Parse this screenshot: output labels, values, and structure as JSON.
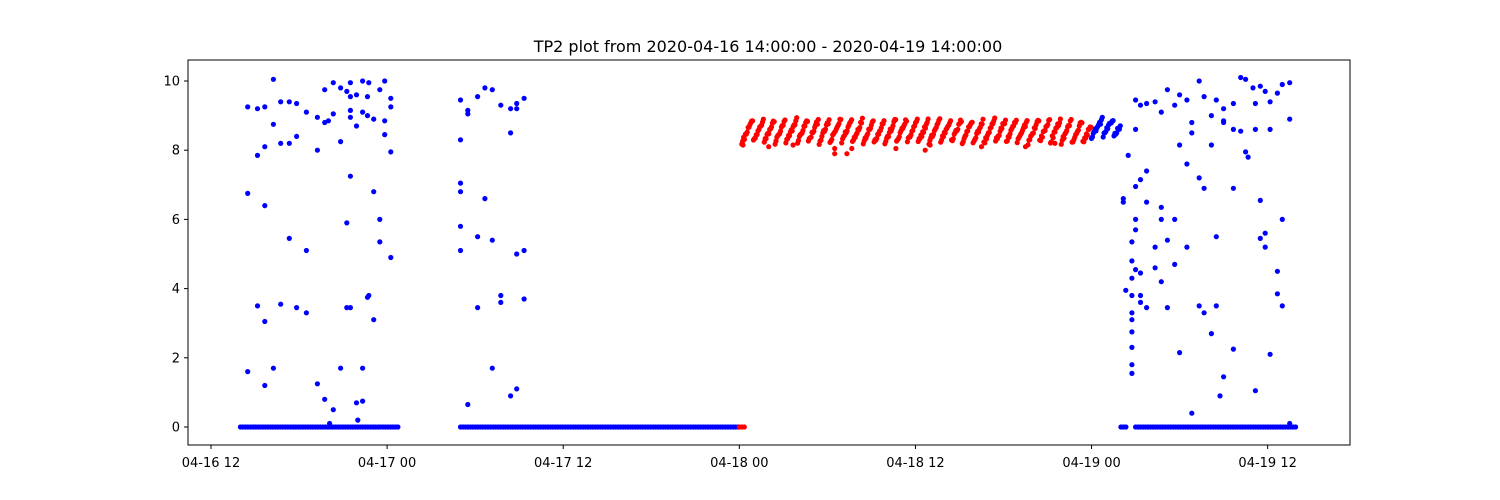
{
  "chart_data": {
    "type": "scatter",
    "title": "TP2 plot from 2020-04-16 14:00:00 - 2020-04-19 14:00:00",
    "xlabel": "",
    "ylabel": "",
    "xlim": [
      "2020-04-16 12:00",
      "2020-04-19 14:00"
    ],
    "ylim": [
      0,
      10
    ],
    "x_ticks": [
      "04-16 12",
      "04-17 00",
      "04-17 12",
      "04-18 00",
      "04-18 12",
      "04-19 00",
      "04-19 12"
    ],
    "y_ticks": [
      "0",
      "2",
      "4",
      "6",
      "8",
      "10"
    ],
    "grid": false,
    "legend": "none",
    "colors": {
      "series_a": "#0000ff",
      "series_b": "#ff0000"
    },
    "series": [
      {
        "color": "#0000ff",
        "segments": [
          {
            "x_start": "2020-04-16 14:00",
            "x_end": "2020-04-17 00:45",
            "y": 0
          },
          {
            "x_start": "2020-04-17 05:00",
            "x_end": "2020-04-17 23:55",
            "y": 0
          },
          {
            "x_start": "2020-04-19 02:00",
            "x_end": "2020-04-19 02:30",
            "y": 0
          },
          {
            "x_start": "2020-04-19 03:00",
            "x_end": "2020-04-19 14:00",
            "y": 0
          }
        ],
        "band": {
          "x_start": "2020-04-19 00:00",
          "x_end": "2020-04-19 02:00",
          "y_min": 8.4,
          "y_max": 8.9
        },
        "points": [
          [
            "2020-04-16 14:30",
            9.25
          ],
          [
            "2020-04-16 14:30",
            6.75
          ],
          [
            "2020-04-16 14:30",
            1.6
          ],
          [
            "2020-04-16 15:10",
            9.2
          ],
          [
            "2020-04-16 15:10",
            7.85
          ],
          [
            "2020-04-16 15:10",
            3.5
          ],
          [
            "2020-04-16 15:40",
            9.25
          ],
          [
            "2020-04-16 15:40",
            8.1
          ],
          [
            "2020-04-16 15:40",
            6.4
          ],
          [
            "2020-04-16 15:40",
            3.05
          ],
          [
            "2020-04-16 15:40",
            1.2
          ],
          [
            "2020-04-16 16:15",
            10.05
          ],
          [
            "2020-04-16 16:15",
            8.75
          ],
          [
            "2020-04-16 16:15",
            1.7
          ],
          [
            "2020-04-16 16:45",
            9.4
          ],
          [
            "2020-04-16 16:45",
            8.2
          ],
          [
            "2020-04-16 16:45",
            3.55
          ],
          [
            "2020-04-16 17:20",
            9.4
          ],
          [
            "2020-04-16 17:20",
            8.2
          ],
          [
            "2020-04-16 17:20",
            5.45
          ],
          [
            "2020-04-16 17:50",
            9.35
          ],
          [
            "2020-04-16 17:50",
            8.4
          ],
          [
            "2020-04-16 17:50",
            3.45
          ],
          [
            "2020-04-16 18:30",
            9.1
          ],
          [
            "2020-04-16 18:30",
            5.1
          ],
          [
            "2020-04-16 18:30",
            3.3
          ],
          [
            "2020-04-16 19:15",
            8.95
          ],
          [
            "2020-04-16 19:15",
            8.0
          ],
          [
            "2020-04-16 19:15",
            1.25
          ],
          [
            "2020-04-16 19:45",
            9.75
          ],
          [
            "2020-04-16 19:45",
            8.8
          ],
          [
            "2020-04-16 19:45",
            0.8
          ],
          [
            "2020-04-16 20:00",
            8.85
          ],
          [
            "2020-04-16 20:05",
            0.1
          ],
          [
            "2020-04-16 20:20",
            0.5
          ],
          [
            "2020-04-16 20:20",
            9.95
          ],
          [
            "2020-04-16 20:20",
            9.05
          ],
          [
            "2020-04-16 20:50",
            9.8
          ],
          [
            "2020-04-16 20:50",
            8.25
          ],
          [
            "2020-04-16 20:50",
            1.7
          ],
          [
            "2020-04-16 21:15",
            9.7
          ],
          [
            "2020-04-16 21:15",
            5.9
          ],
          [
            "2020-04-16 21:15",
            3.45
          ],
          [
            "2020-04-16 21:30",
            9.95
          ],
          [
            "2020-04-16 21:30",
            9.55
          ],
          [
            "2020-04-16 21:30",
            9.15
          ],
          [
            "2020-04-16 21:30",
            8.95
          ],
          [
            "2020-04-16 21:30",
            7.25
          ],
          [
            "2020-04-16 21:30",
            3.45
          ],
          [
            "2020-04-16 21:55",
            9.6
          ],
          [
            "2020-04-16 21:55",
            8.7
          ],
          [
            "2020-04-16 21:55",
            0.7
          ],
          [
            "2020-04-16 22:00",
            0.2
          ],
          [
            "2020-04-16 22:20",
            10.0
          ],
          [
            "2020-04-16 22:20",
            9.1
          ],
          [
            "2020-04-16 22:20",
            1.7
          ],
          [
            "2020-04-16 22:20",
            0.75
          ],
          [
            "2020-04-16 22:40",
            9.55
          ],
          [
            "2020-04-16 22:40",
            9.0
          ],
          [
            "2020-04-16 22:40",
            3.75
          ],
          [
            "2020-04-16 22:45",
            9.95
          ],
          [
            "2020-04-16 22:45",
            3.8
          ],
          [
            "2020-04-16 23:05",
            8.9
          ],
          [
            "2020-04-16 23:05",
            6.8
          ],
          [
            "2020-04-16 23:05",
            3.1
          ],
          [
            "2020-04-16 23:30",
            9.75
          ],
          [
            "2020-04-16 23:30",
            6.0
          ],
          [
            "2020-04-16 23:30",
            5.35
          ],
          [
            "2020-04-16 23:50",
            10.0
          ],
          [
            "2020-04-16 23:50",
            8.85
          ],
          [
            "2020-04-16 23:50",
            8.45
          ],
          [
            "2020-04-17 00:15",
            9.5
          ],
          [
            "2020-04-17 00:15",
            9.25
          ],
          [
            "2020-04-17 00:15",
            7.95
          ],
          [
            "2020-04-17 00:15",
            4.9
          ],
          [
            "2020-04-17 05:00",
            9.45
          ],
          [
            "2020-04-17 05:00",
            8.3
          ],
          [
            "2020-04-17 05:00",
            7.05
          ],
          [
            "2020-04-17 05:00",
            6.8
          ],
          [
            "2020-04-17 05:00",
            5.8
          ],
          [
            "2020-04-17 05:00",
            5.1
          ],
          [
            "2020-04-17 05:30",
            9.15
          ],
          [
            "2020-04-17 05:30",
            9.05
          ],
          [
            "2020-04-17 05:30",
            0.65
          ],
          [
            "2020-04-17 06:10",
            9.55
          ],
          [
            "2020-04-17 06:10",
            5.5
          ],
          [
            "2020-04-17 06:10",
            3.45
          ],
          [
            "2020-04-17 06:40",
            9.8
          ],
          [
            "2020-04-17 06:40",
            6.6
          ],
          [
            "2020-04-17 07:10",
            9.75
          ],
          [
            "2020-04-17 07:10",
            5.4
          ],
          [
            "2020-04-17 07:10",
            1.7
          ],
          [
            "2020-04-17 07:45",
            9.3
          ],
          [
            "2020-04-17 07:45",
            3.8
          ],
          [
            "2020-04-17 07:45",
            3.6
          ],
          [
            "2020-04-17 08:25",
            9.2
          ],
          [
            "2020-04-17 08:25",
            8.5
          ],
          [
            "2020-04-17 08:25",
            0.9
          ],
          [
            "2020-04-17 08:50",
            9.35
          ],
          [
            "2020-04-17 08:50",
            9.2
          ],
          [
            "2020-04-17 08:50",
            5.0
          ],
          [
            "2020-04-17 08:50",
            1.1
          ],
          [
            "2020-04-17 09:20",
            9.5
          ],
          [
            "2020-04-17 09:20",
            5.1
          ],
          [
            "2020-04-17 09:20",
            3.7
          ],
          [
            "2020-04-19 02:10",
            6.6
          ],
          [
            "2020-04-19 02:10",
            6.5
          ],
          [
            "2020-04-19 02:20",
            3.95
          ],
          [
            "2020-04-19 02:30",
            7.85
          ],
          [
            "2020-04-19 02:45",
            5.35
          ],
          [
            "2020-04-19 02:45",
            4.8
          ],
          [
            "2020-04-19 02:45",
            4.3
          ],
          [
            "2020-04-19 02:45",
            3.8
          ],
          [
            "2020-04-19 02:45",
            3.3
          ],
          [
            "2020-04-19 02:45",
            3.1
          ],
          [
            "2020-04-19 02:45",
            2.75
          ],
          [
            "2020-04-19 02:45",
            2.3
          ],
          [
            "2020-04-19 02:45",
            1.8
          ],
          [
            "2020-04-19 02:45",
            1.55
          ],
          [
            "2020-04-19 03:00",
            9.45
          ],
          [
            "2020-04-19 03:00",
            8.6
          ],
          [
            "2020-04-19 03:00",
            6.95
          ],
          [
            "2020-04-19 03:00",
            6.0
          ],
          [
            "2020-04-19 03:00",
            5.7
          ],
          [
            "2020-04-19 03:00",
            4.55
          ],
          [
            "2020-04-19 03:20",
            9.3
          ],
          [
            "2020-04-19 03:20",
            7.15
          ],
          [
            "2020-04-19 03:20",
            4.45
          ],
          [
            "2020-04-19 03:20",
            3.8
          ],
          [
            "2020-04-19 03:20",
            3.6
          ],
          [
            "2020-04-19 03:45",
            9.35
          ],
          [
            "2020-04-19 03:45",
            7.4
          ],
          [
            "2020-04-19 03:45",
            6.5
          ],
          [
            "2020-04-19 03:45",
            3.45
          ],
          [
            "2020-04-19 04:20",
            9.4
          ],
          [
            "2020-04-19 04:20",
            5.2
          ],
          [
            "2020-04-19 04:20",
            4.6
          ],
          [
            "2020-04-19 04:45",
            9.1
          ],
          [
            "2020-04-19 04:45",
            6.0
          ],
          [
            "2020-04-19 04:45",
            6.35
          ],
          [
            "2020-04-19 04:45",
            4.2
          ],
          [
            "2020-04-19 05:10",
            9.75
          ],
          [
            "2020-04-19 05:10",
            5.4
          ],
          [
            "2020-04-19 05:10",
            3.45
          ],
          [
            "2020-04-19 05:40",
            9.3
          ],
          [
            "2020-04-19 05:40",
            6.0
          ],
          [
            "2020-04-19 05:40",
            4.7
          ],
          [
            "2020-04-19 06:00",
            9.6
          ],
          [
            "2020-04-19 06:00",
            8.15
          ],
          [
            "2020-04-19 06:00",
            2.15
          ],
          [
            "2020-04-19 06:30",
            9.45
          ],
          [
            "2020-04-19 06:30",
            7.6
          ],
          [
            "2020-04-19 06:30",
            5.2
          ],
          [
            "2020-04-19 06:50",
            8.8
          ],
          [
            "2020-04-19 06:50",
            8.5
          ],
          [
            "2020-04-19 06:50",
            0.4
          ],
          [
            "2020-04-19 07:20",
            10.0
          ],
          [
            "2020-04-19 07:20",
            7.2
          ],
          [
            "2020-04-19 07:20",
            3.5
          ],
          [
            "2020-04-19 07:40",
            9.55
          ],
          [
            "2020-04-19 07:40",
            6.9
          ],
          [
            "2020-04-19 07:40",
            3.3
          ],
          [
            "2020-04-19 08:10",
            9.0
          ],
          [
            "2020-04-19 08:10",
            8.15
          ],
          [
            "2020-04-19 08:10",
            2.7
          ],
          [
            "2020-04-19 08:30",
            9.45
          ],
          [
            "2020-04-19 08:30",
            5.5
          ],
          [
            "2020-04-19 08:30",
            3.5
          ],
          [
            "2020-04-19 08:45",
            0.9
          ],
          [
            "2020-04-19 09:00",
            9.2
          ],
          [
            "2020-04-19 09:00",
            8.85
          ],
          [
            "2020-04-19 09:00",
            8.8
          ],
          [
            "2020-04-19 09:00",
            1.45
          ],
          [
            "2020-04-19 09:40",
            9.35
          ],
          [
            "2020-04-19 09:40",
            8.6
          ],
          [
            "2020-04-19 09:40",
            6.9
          ],
          [
            "2020-04-19 09:40",
            2.25
          ],
          [
            "2020-04-19 10:10",
            10.1
          ],
          [
            "2020-04-19 10:10",
            8.55
          ],
          [
            "2020-04-19 10:30",
            10.05
          ],
          [
            "2020-04-19 10:30",
            7.95
          ],
          [
            "2020-04-19 10:40",
            7.8
          ],
          [
            "2020-04-19 11:00",
            9.8
          ],
          [
            "2020-04-19 11:10",
            9.35
          ],
          [
            "2020-04-19 11:10",
            8.6
          ],
          [
            "2020-04-19 11:10",
            1.05
          ],
          [
            "2020-04-19 11:30",
            9.85
          ],
          [
            "2020-04-19 11:30",
            6.55
          ],
          [
            "2020-04-19 11:30",
            5.45
          ],
          [
            "2020-04-19 11:50",
            9.7
          ],
          [
            "2020-04-19 11:50",
            5.6
          ],
          [
            "2020-04-19 11:50",
            5.2
          ],
          [
            "2020-04-19 12:10",
            9.4
          ],
          [
            "2020-04-19 12:10",
            8.6
          ],
          [
            "2020-04-19 12:10",
            2.1
          ],
          [
            "2020-04-19 12:40",
            9.65
          ],
          [
            "2020-04-19 12:40",
            4.5
          ],
          [
            "2020-04-19 12:40",
            3.85
          ],
          [
            "2020-04-19 13:00",
            9.9
          ],
          [
            "2020-04-19 13:00",
            6.0
          ],
          [
            "2020-04-19 13:00",
            3.5
          ],
          [
            "2020-04-19 13:30",
            9.95
          ],
          [
            "2020-04-19 13:30",
            8.9
          ],
          [
            "2020-04-19 13:30",
            0.1
          ]
        ]
      },
      {
        "color": "#ff0000",
        "segments": [
          {
            "x_start": "2020-04-18 00:00",
            "x_end": "2020-04-18 00:30",
            "y": 0
          }
        ],
        "band": {
          "x_start": "2020-04-18 00:10",
          "x_end": "2020-04-19 00:00",
          "y_min": 8.2,
          "y_max": 8.9
        },
        "points": [
          [
            "2020-04-18 00:15",
            8.15
          ],
          [
            "2020-04-18 02:00",
            8.1
          ],
          [
            "2020-04-18 03:40",
            8.15
          ],
          [
            "2020-04-18 06:30",
            8.05
          ],
          [
            "2020-04-18 06:30",
            7.9
          ],
          [
            "2020-04-18 07:20",
            7.9
          ],
          [
            "2020-04-18 07:40",
            8.05
          ],
          [
            "2020-04-18 10:40",
            8.05
          ],
          [
            "2020-04-18 12:40",
            8.0
          ],
          [
            "2020-04-18 13:00",
            8.15
          ],
          [
            "2020-04-18 16:30",
            8.1
          ],
          [
            "2020-04-18 19:30",
            8.1
          ],
          [
            "2020-04-18 21:30",
            8.2
          ]
        ]
      }
    ]
  }
}
